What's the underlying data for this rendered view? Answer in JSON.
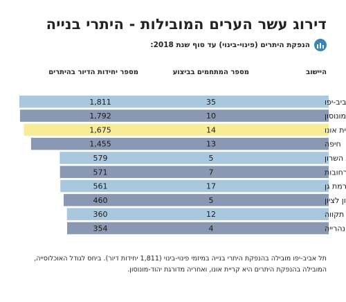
{
  "header": {
    "title": "דירוג עשר הערים המובילות - היתרי בנייה",
    "subtitle": "הנפקת היתרים (פינוי-בינוי) עד סוף שנת 2018:",
    "icon": "bar-chart-icon"
  },
  "columns": {
    "city": "היישוב",
    "projects": "מספר המתחמים בביצוע",
    "units": "מספר יחידות הדיור בהיתרים"
  },
  "chart_data": {
    "type": "bar",
    "orientation": "horizontal",
    "title": "דירוג עשר הערים המובילות - היתרי בנייה",
    "subtitle": "הנפקת היתרים (פינוי-בינוי) עד סוף שנת 2018:",
    "categories": [
      "תל אביב-יפו",
      "יהוד-מונוסון",
      "קריית אונו",
      "חיפה",
      "רמת השרון",
      "רחובות",
      "רמת גן",
      "ראשון לציון",
      "פתח תקווה",
      "נהרייה"
    ],
    "series": [
      {
        "name": "מספר יחידות הדיור בהיתרים",
        "values": [
          1811,
          1792,
          1675,
          1455,
          579,
          571,
          561,
          460,
          360,
          354
        ]
      },
      {
        "name": "מספר המתחמים בביצוע",
        "values": [
          35,
          10,
          14,
          13,
          5,
          7,
          17,
          5,
          12,
          4
        ]
      }
    ],
    "units_labels": [
      "1,811",
      "1,792",
      "1,675",
      "1,455",
      "579",
      "571",
      "561",
      "460",
      "360",
      "354"
    ],
    "projects_labels": [
      "35",
      "10",
      "14",
      "13",
      "5",
      "7",
      "17",
      "5",
      "12",
      "4"
    ],
    "highlight_index": 2,
    "colors": {
      "bar_light": "#a9c8de",
      "bar_dark": "#8a98b3",
      "highlight": "#f6ed96"
    }
  },
  "footnote": {
    "line1": "תל אביב-יפו מובילה בהנפקת היתרי בנייה במיזמי פינוי-בינוי (1,811 יחידות דיור). ביחס לגודל האוכלוסייה,",
    "line2": "המובילה בהנפקת היתרים היא קריית אונו, ואחריה מדורגת יהוד-מונוסון."
  }
}
